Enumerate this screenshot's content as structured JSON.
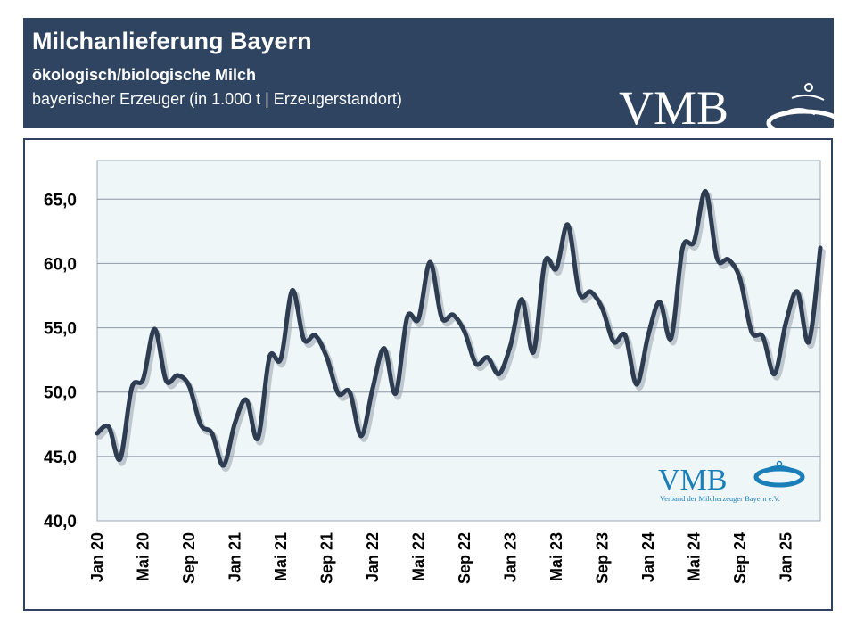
{
  "header": {
    "title": "Milchanlieferung Bayern",
    "subtitle1": "ökologisch/biologische Milch",
    "subtitle2": "bayerischer Erzeuger (in 1.000 t | Erzeugerstandort)",
    "logo_text": "VMB"
  },
  "watermark": {
    "logo_text": "VMB",
    "caption": "Verband der Milcherzeuger Bayern e.V."
  },
  "colors": {
    "header_bg": "#2e4460",
    "plot_bg": "#eef6f8",
    "line": "#2e3c52",
    "logo_blue": "#1a7fb8"
  },
  "chart_data": {
    "type": "line",
    "title": "",
    "xlabel": "",
    "ylabel": "",
    "ylim": [
      40,
      68
    ],
    "yticks": [
      "40,0",
      "45,0",
      "50,0",
      "55,0",
      "60,0",
      "65,0"
    ],
    "ytick_values": [
      40,
      45,
      50,
      55,
      60,
      65
    ],
    "grid": true,
    "x_tick_labels": [
      "Jan 20",
      "Mai 20",
      "Sep 20",
      "Jan 21",
      "Mai 21",
      "Sep 21",
      "Jan 22",
      "Mai 22",
      "Sep 22",
      "Jan 23",
      "Mai 23",
      "Sep 23",
      "Jan 24",
      "Mai 24",
      "Sep 24",
      "Jan 25"
    ],
    "series": [
      {
        "values": [
          46.8,
          47.3,
          44.8,
          50.3,
          51.0,
          54.9,
          50.9,
          51.3,
          50.5,
          47.5,
          46.8,
          44.3,
          47.6,
          49.4,
          46.4,
          52.7,
          52.6,
          57.9,
          54.1,
          54.4,
          52.7,
          49.9,
          50.0,
          46.6,
          50.3,
          53.4,
          49.9,
          55.8,
          55.7,
          60.1,
          55.8,
          56.0,
          54.7,
          52.2,
          52.7,
          51.4,
          53.6,
          57.2,
          53.1,
          60.1,
          59.6,
          63.0,
          57.7,
          57.8,
          56.5,
          53.9,
          54.4,
          50.6,
          54.4,
          57.0,
          54.2,
          61.2,
          61.7,
          65.6,
          60.4,
          60.3,
          58.8,
          54.7,
          54.3,
          51.4,
          55.4,
          57.8,
          53.9,
          61.2
        ]
      }
    ]
  }
}
